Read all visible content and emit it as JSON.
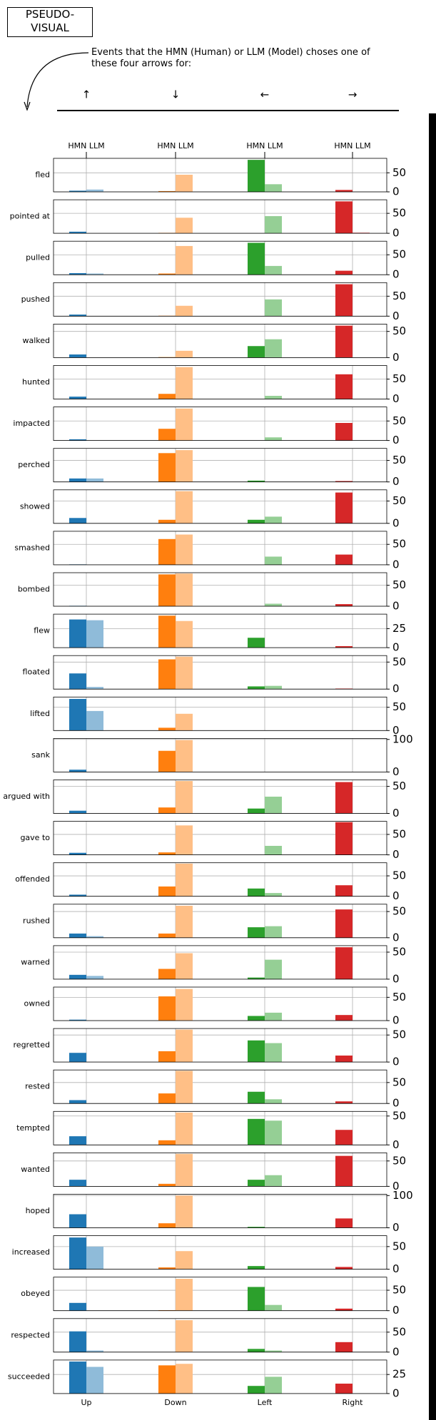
{
  "header": {
    "title_lines": [
      "PSEUDO-",
      "VISUAL"
    ],
    "description": "Events that the HMN (Human) or LLM (Model) choses one of these four arrows for:"
  },
  "arrows": [
    "↑",
    "↓",
    "←",
    "→"
  ],
  "top_label": "HMN LLM",
  "column_labels": [
    "Up",
    "Down",
    "Left",
    "Right"
  ],
  "colors": {
    "hmn": [
      "#1f77b4",
      "#ff7f0e",
      "#2ca02c",
      "#d62728"
    ],
    "llm": [
      "#8fbbd9",
      "#ffbf86",
      "#95cf95",
      "#eb9394"
    ]
  },
  "chart_data": [
    {
      "type": "bar",
      "ylabel": "fled",
      "hmn": [
        3,
        2,
        84,
        5
      ],
      "llm": [
        6,
        45,
        20,
        0
      ],
      "ylim": [
        0,
        88
      ],
      "yticks": [
        0,
        50
      ]
    },
    {
      "type": "bar",
      "ylabel": "pointed at",
      "hmn": [
        4,
        1,
        0,
        80
      ],
      "llm": [
        0,
        39,
        43,
        2
      ],
      "ylim": [
        0,
        84
      ],
      "yticks": [
        0,
        50
      ]
    },
    {
      "type": "bar",
      "ylabel": "pulled",
      "hmn": [
        4,
        3,
        80,
        10
      ],
      "llm": [
        3,
        72,
        22,
        0
      ],
      "ylim": [
        0,
        84
      ],
      "yticks": [
        0,
        50
      ]
    },
    {
      "type": "bar",
      "ylabel": "pushed",
      "hmn": [
        4,
        1,
        0,
        80
      ],
      "llm": [
        0,
        26,
        42,
        0
      ],
      "ylim": [
        0,
        84
      ],
      "yticks": [
        0,
        50
      ]
    },
    {
      "type": "bar",
      "ylabel": "walked",
      "hmn": [
        6,
        1,
        22,
        61
      ],
      "llm": [
        0,
        13,
        35,
        0
      ],
      "ylim": [
        0,
        64
      ],
      "yticks": [
        0,
        50
      ]
    },
    {
      "type": "bar",
      "ylabel": "hunted",
      "hmn": [
        6,
        13,
        0,
        62
      ],
      "llm": [
        0,
        80,
        8,
        0
      ],
      "ylim": [
        0,
        84
      ],
      "yticks": [
        0,
        50
      ]
    },
    {
      "type": "bar",
      "ylabel": "impacted",
      "hmn": [
        3,
        30,
        0,
        45
      ],
      "llm": [
        0,
        82,
        8,
        0
      ],
      "ylim": [
        0,
        86
      ],
      "yticks": [
        0,
        50
      ]
    },
    {
      "type": "bar",
      "ylabel": "perched",
      "hmn": [
        8,
        67,
        3,
        2
      ],
      "llm": [
        8,
        74,
        0,
        0
      ],
      "ylim": [
        0,
        78
      ],
      "yticks": [
        0,
        50
      ]
    },
    {
      "type": "bar",
      "ylabel": "showed",
      "hmn": [
        12,
        8,
        8,
        69
      ],
      "llm": [
        0,
        72,
        15,
        0
      ],
      "ylim": [
        0,
        75
      ],
      "yticks": [
        0,
        50
      ]
    },
    {
      "type": "bar",
      "ylabel": "smashed",
      "hmn": [
        1,
        63,
        0,
        25
      ],
      "llm": [
        0,
        74,
        20,
        0
      ],
      "ylim": [
        0,
        82
      ],
      "yticks": [
        0,
        50
      ]
    },
    {
      "type": "bar",
      "ylabel": "bombed",
      "hmn": [
        1,
        76,
        0,
        5
      ],
      "llm": [
        0,
        78,
        6,
        0
      ],
      "ylim": [
        0,
        80
      ],
      "yticks": [
        0,
        50
      ]
    },
    {
      "type": "bar",
      "ylabel": "flew",
      "hmn": [
        37,
        42,
        13,
        2
      ],
      "llm": [
        36,
        35,
        0,
        0
      ],
      "ylim": [
        0,
        44
      ],
      "yticks": [
        0,
        25
      ]
    },
    {
      "type": "bar",
      "ylabel": "floated",
      "hmn": [
        29,
        55,
        5,
        1
      ],
      "llm": [
        4,
        60,
        6,
        0
      ],
      "ylim": [
        0,
        62
      ],
      "yticks": [
        0,
        50
      ]
    },
    {
      "type": "bar",
      "ylabel": "lifted",
      "hmn": [
        68,
        6,
        0,
        0
      ],
      "llm": [
        42,
        36,
        0,
        0
      ],
      "ylim": [
        0,
        72
      ],
      "yticks": [
        0,
        50
      ]
    },
    {
      "type": "bar",
      "ylabel": "sank",
      "hmn": [
        7,
        65,
        0,
        0
      ],
      "llm": [
        0,
        98,
        0,
        0
      ],
      "ylim": [
        0,
        103
      ],
      "yticks": [
        0,
        100
      ]
    },
    {
      "type": "bar",
      "ylabel": "argued with",
      "hmn": [
        5,
        11,
        9,
        58
      ],
      "llm": [
        0,
        60,
        31,
        0
      ],
      "ylim": [
        0,
        62
      ],
      "yticks": [
        0,
        50
      ]
    },
    {
      "type": "bar",
      "ylabel": "gave to",
      "hmn": [
        5,
        6,
        0,
        80
      ],
      "llm": [
        0,
        72,
        22,
        0
      ],
      "ylim": [
        0,
        82
      ],
      "yticks": [
        0,
        50
      ]
    },
    {
      "type": "bar",
      "ylabel": "offended",
      "hmn": [
        4,
        24,
        19,
        27
      ],
      "llm": [
        0,
        80,
        8,
        0
      ],
      "ylim": [
        0,
        82
      ],
      "yticks": [
        0,
        50
      ]
    },
    {
      "type": "bar",
      "ylabel": "rushed",
      "hmn": [
        8,
        8,
        20,
        54
      ],
      "llm": [
        3,
        61,
        22,
        0
      ],
      "ylim": [
        0,
        64
      ],
      "yticks": [
        0,
        50
      ]
    },
    {
      "type": "bar",
      "ylabel": "warned",
      "hmn": [
        8,
        19,
        3,
        59
      ],
      "llm": [
        6,
        48,
        36,
        0
      ],
      "ylim": [
        0,
        62
      ],
      "yticks": [
        0,
        50
      ]
    },
    {
      "type": "bar",
      "ylabel": "owned",
      "hmn": [
        2,
        52,
        10,
        12
      ],
      "llm": [
        0,
        68,
        17,
        0
      ],
      "ylim": [
        0,
        72
      ],
      "yticks": [
        0,
        50
      ]
    },
    {
      "type": "bar",
      "ylabel": "regretted",
      "hmn": [
        17,
        20,
        40,
        12
      ],
      "llm": [
        0,
        60,
        35,
        0
      ],
      "ylim": [
        0,
        62
      ],
      "yticks": [
        0,
        50
      ]
    },
    {
      "type": "bar",
      "ylabel": "rested",
      "hmn": [
        8,
        24,
        28,
        5
      ],
      "llm": [
        0,
        78,
        10,
        0
      ],
      "ylim": [
        0,
        80
      ],
      "yticks": [
        0,
        50
      ]
    },
    {
      "type": "bar",
      "ylabel": "tempted",
      "hmn": [
        15,
        8,
        45,
        26
      ],
      "llm": [
        0,
        56,
        42,
        0
      ],
      "ylim": [
        0,
        58
      ],
      "yticks": [
        0,
        50
      ]
    },
    {
      "type": "bar",
      "ylabel": "wanted",
      "hmn": [
        13,
        5,
        13,
        60
      ],
      "llm": [
        0,
        64,
        22,
        0
      ],
      "ylim": [
        0,
        66
      ],
      "yticks": [
        0,
        50
      ]
    },
    {
      "type": "bar",
      "ylabel": "hoped",
      "hmn": [
        42,
        14,
        3,
        29
      ],
      "llm": [
        0,
        100,
        1,
        0
      ],
      "ylim": [
        0,
        104
      ],
      "yticks": [
        0,
        100
      ]
    },
    {
      "type": "bar",
      "ylabel": "increased",
      "hmn": [
        70,
        4,
        7,
        5
      ],
      "llm": [
        50,
        40,
        0,
        0
      ],
      "ylim": [
        0,
        74
      ],
      "yticks": [
        0,
        50
      ]
    },
    {
      "type": "bar",
      "ylabel": "obeyed",
      "hmn": [
        19,
        1,
        58,
        5
      ],
      "llm": [
        0,
        78,
        14,
        0
      ],
      "ylim": [
        0,
        82
      ],
      "yticks": [
        0,
        50
      ]
    },
    {
      "type": "bar",
      "ylabel": "respected",
      "hmn": [
        52,
        0,
        8,
        25
      ],
      "llm": [
        4,
        80,
        4,
        0
      ],
      "ylim": [
        0,
        84
      ],
      "yticks": [
        0,
        50
      ]
    },
    {
      "type": "bar",
      "ylabel": "succeeded",
      "hmn": [
        42,
        37,
        10,
        13
      ],
      "llm": [
        35,
        39,
        22,
        0
      ],
      "ylim": [
        0,
        44
      ],
      "yticks": [
        0,
        25
      ]
    }
  ]
}
